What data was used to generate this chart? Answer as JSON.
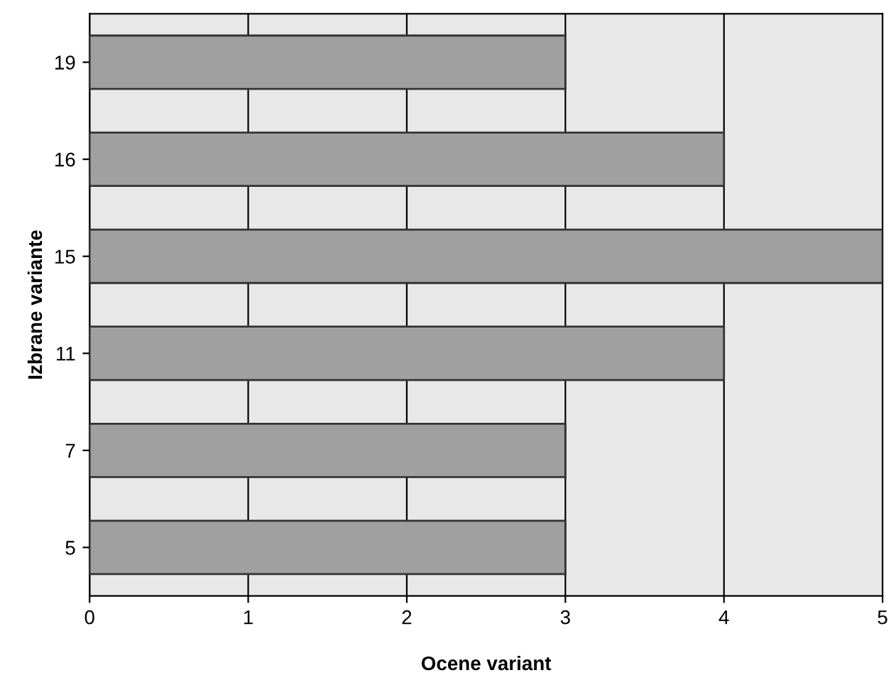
{
  "chart_data": {
    "type": "bar",
    "orientation": "horizontal",
    "xlabel": "Ocene variant",
    "ylabel": "Izbrane variante",
    "categories": [
      "19",
      "16",
      "15",
      "11",
      "7",
      "5"
    ],
    "values": [
      3,
      4,
      5,
      4,
      3,
      3
    ],
    "color": "#a0a0a0",
    "xlim": [
      0,
      5
    ],
    "xticks": [
      0,
      1,
      2,
      3,
      4,
      5
    ],
    "grid": "x",
    "legend": false
  }
}
